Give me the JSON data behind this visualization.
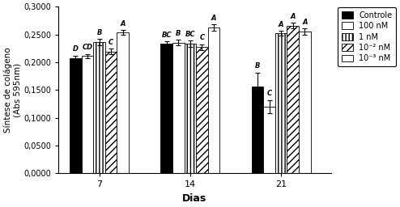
{
  "groups": [
    "7",
    "14",
    "21"
  ],
  "series": [
    {
      "label": "Controle",
      "values": [
        0.207,
        0.233,
        0.156
      ],
      "errors": [
        0.005,
        0.004,
        0.025
      ],
      "hatch": null,
      "facecolor": "#000000",
      "edgecolor": "#000000",
      "letters": [
        "D",
        "BC",
        "B"
      ]
    },
    {
      "label": "100 nM",
      "values": [
        0.211,
        0.235,
        0.12
      ],
      "errors": [
        0.004,
        0.005,
        0.012
      ],
      "hatch": null,
      "facecolor": "#ffffff",
      "edgecolor": "#000000",
      "letters": [
        "CD",
        "B",
        "C"
      ]
    },
    {
      "label": "1 nM",
      "values": [
        0.236,
        0.233,
        0.252
      ],
      "errors": [
        0.006,
        0.006,
        0.004
      ],
      "hatch": "|||",
      "facecolor": "#ffffff",
      "edgecolor": "#000000",
      "letters": [
        "B",
        "BC",
        "A"
      ]
    },
    {
      "label": "10⁻² nM",
      "values": [
        0.219,
        0.227,
        0.266
      ],
      "errors": [
        0.005,
        0.005,
        0.005
      ],
      "hatch": "///",
      "facecolor": "#ffffff",
      "edgecolor": "#000000",
      "letters": [
        "C",
        "C",
        "A"
      ]
    },
    {
      "label": "10⁻³ nM",
      "values": [
        0.254,
        0.262,
        0.255
      ],
      "errors": [
        0.004,
        0.006,
        0.006
      ],
      "hatch": "---",
      "facecolor": "#ffffff",
      "edgecolor": "#000000",
      "letters": [
        "A",
        "A",
        "A"
      ]
    }
  ],
  "ylabel": "Síntese de colágeno\n(Abs 595nm)",
  "xlabel": "Dias",
  "ylim": [
    0,
    0.3
  ],
  "yticks": [
    0.0,
    0.05,
    0.1,
    0.15,
    0.2,
    0.25,
    0.3
  ],
  "ytick_labels": [
    "0,0000",
    "0,0500",
    "0,1000",
    "0,1500",
    "0,2000",
    "0,2500",
    "0,3000"
  ],
  "background_color": "#ffffff",
  "bar_width": 0.13,
  "group_positions": [
    1,
    2,
    3
  ],
  "legend_labels": [
    "Controle",
    "100 nM",
    "1 nM",
    "10⁻² nM",
    "10⁻³ nM"
  ]
}
